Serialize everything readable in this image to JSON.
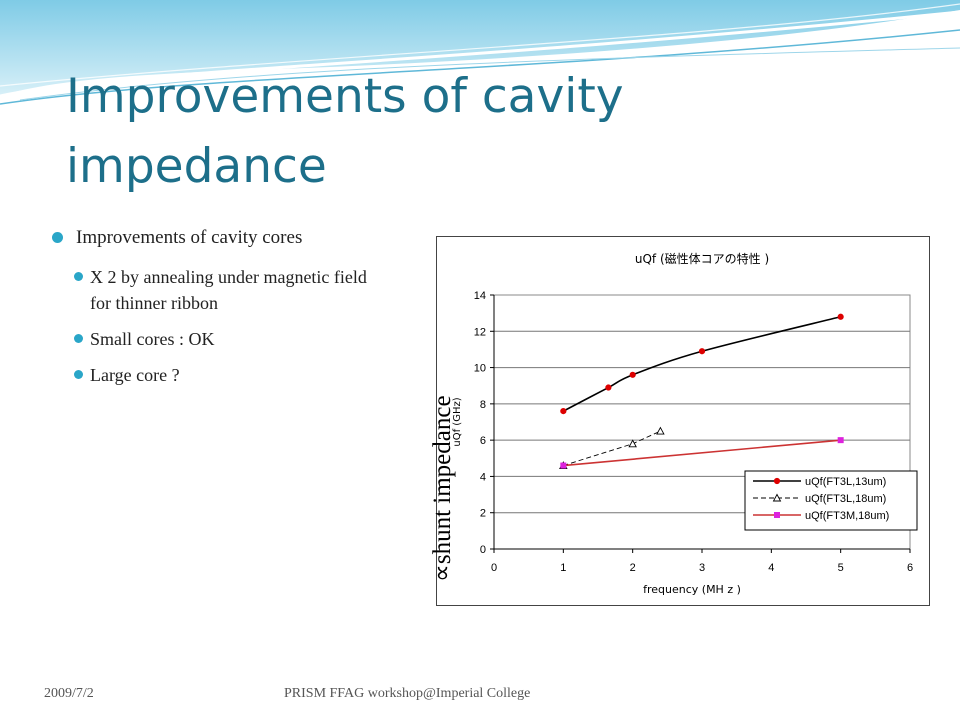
{
  "slide": {
    "title": "Improvements of cavity impedance",
    "bullets": [
      {
        "text": "Improvements of cavity cores",
        "sub": [
          "X 2 by annealing under magnetic field for thinner ribbon",
          "Small cores : OK",
          "Large core ?"
        ]
      }
    ],
    "rotated_label": "∝shunt  impedance",
    "footer": {
      "date": "2009/7/2",
      "venue": "PRISM FFAG workshop@Imperial College"
    },
    "accent_color": "#1d6f8a",
    "bullet_color": "#2aa6c8"
  },
  "chart_data": {
    "type": "line",
    "title": "uQf (磁性体コアの特性 )",
    "xlabel": "frequency (MH z )",
    "ylabel": "uQf (GHz)",
    "xlim": [
      0,
      6
    ],
    "ylim": [
      0,
      14
    ],
    "xticks": [
      "0",
      "1",
      "2",
      "3",
      "4",
      "5",
      "6"
    ],
    "yticks": [
      "0",
      "2",
      "4",
      "6",
      "8",
      "10",
      "12",
      "14"
    ],
    "grid": "horizontal",
    "legend_position": "bottom-right",
    "series": [
      {
        "name": "uQf(FT3L,13um)",
        "color": "#000000",
        "marker": "circle",
        "marker_color": "#dd0000",
        "line": "solid",
        "smooth": true,
        "x": [
          1,
          1.65,
          2,
          3,
          5
        ],
        "y": [
          7.6,
          8.9,
          9.6,
          10.9,
          12.8
        ]
      },
      {
        "name": "uQf(FT3L,18um)",
        "color": "#000000",
        "marker": "triangle",
        "marker_color": "#000000",
        "line": "dashed",
        "smooth": false,
        "x": [
          1,
          2,
          2.4
        ],
        "y": [
          4.6,
          5.8,
          6.5
        ]
      },
      {
        "name": "uQf(FT3M,18um)",
        "color": "#cc3333",
        "marker": "square",
        "marker_color": "#dd22dd",
        "line": "solid",
        "smooth": false,
        "x": [
          1,
          5
        ],
        "y": [
          4.6,
          6.0
        ]
      }
    ]
  }
}
